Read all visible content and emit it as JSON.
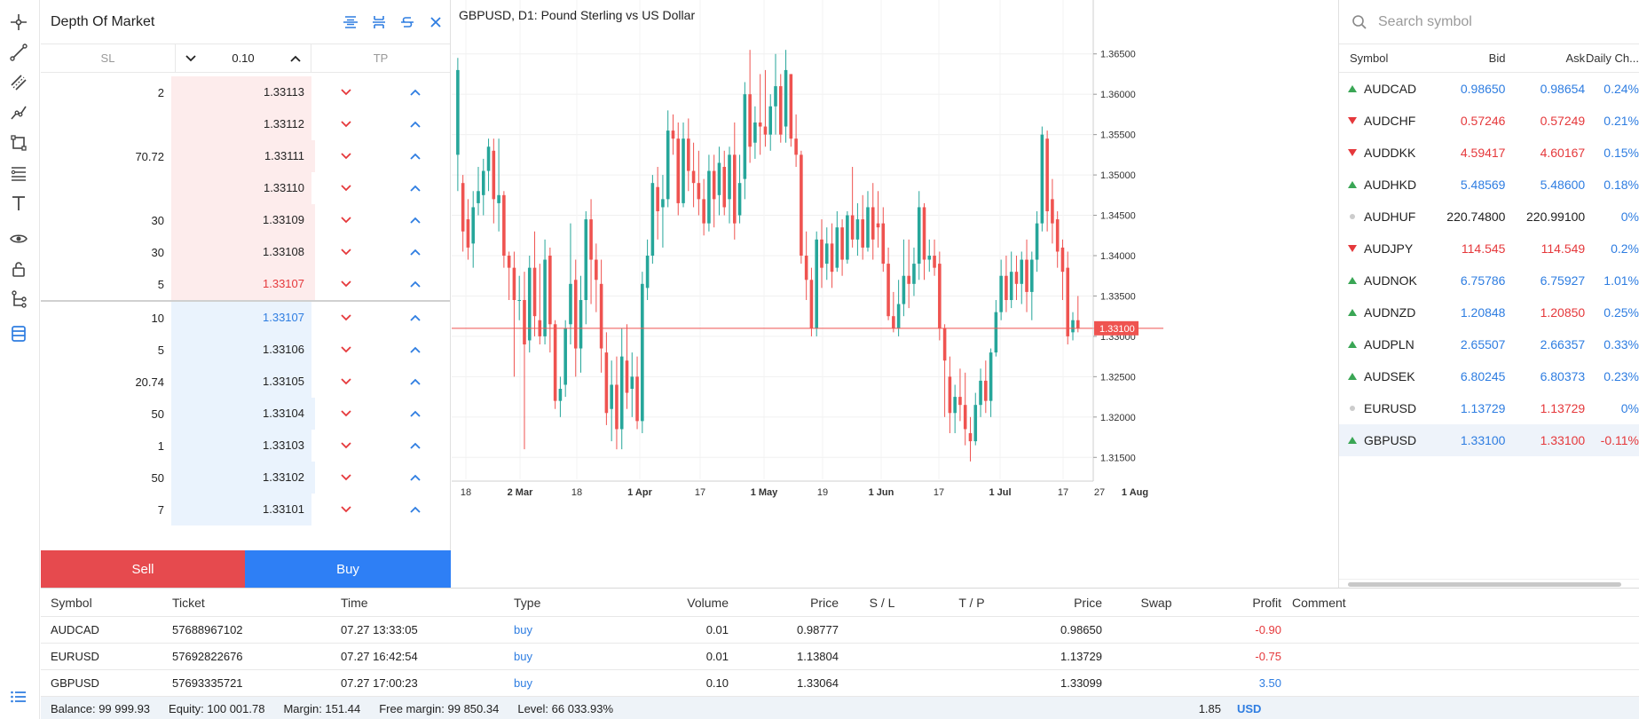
{
  "toolbar": {
    "tools": [
      "crosshair-icon",
      "trend-line-icon",
      "channel-icon",
      "polyline-icon",
      "shape-icon",
      "fibonacci-icon",
      "text-icon",
      "eye-icon",
      "lock-icon",
      "tree-icon",
      "depth-of-market-icon"
    ],
    "bottom": "list-icon"
  },
  "dom": {
    "title": "Depth Of Market",
    "sl_label": "SL",
    "tp_label": "TP",
    "volume": "0.10",
    "asks": [
      {
        "volume": "2",
        "price": "1.33113",
        "depth": 0
      },
      {
        "volume": "",
        "price": "1.33112",
        "depth": 0
      },
      {
        "volume": "70.72",
        "price": "1.33111",
        "depth": 0.6
      },
      {
        "volume": "",
        "price": "1.33110",
        "depth": 0
      },
      {
        "volume": "30",
        "price": "1.33109",
        "depth": 0.26
      },
      {
        "volume": "30",
        "price": "1.33108",
        "depth": 0.26
      },
      {
        "volume": "5",
        "price": "1.33107",
        "depth": 0.04,
        "highlight": true
      }
    ],
    "bids": [
      {
        "volume": "10",
        "price": "1.33107",
        "depth": 0,
        "highlight": true
      },
      {
        "volume": "5",
        "price": "1.33106",
        "depth": 0
      },
      {
        "volume": "20.74",
        "price": "1.33105",
        "depth": 0
      },
      {
        "volume": "50",
        "price": "1.33104",
        "depth": 0.38
      },
      {
        "volume": "1",
        "price": "1.33103",
        "depth": 0
      },
      {
        "volume": "50",
        "price": "1.33102",
        "depth": 0.38
      },
      {
        "volume": "7",
        "price": "1.33101",
        "depth": 0
      }
    ],
    "sell_label": "Sell",
    "buy_label": "Buy"
  },
  "chart": {
    "title": "GBPUSD, D1: Pound Sterling vs US Dollar",
    "current_price": "1.33100",
    "colors": {
      "up": "#26a69a",
      "down": "#ef5350",
      "price_line": "#ef5350"
    }
  },
  "chart_data": {
    "type": "candlestick",
    "title": "GBPUSD, D1: Pound Sterling vs US Dollar",
    "x_tick_labels": [
      "18",
      "2 Mar",
      "18",
      "1 Apr",
      "17",
      "1 May",
      "19",
      "1 Jun",
      "17",
      "1 Jul",
      "17",
      "27",
      "1 Aug"
    ],
    "y_tick_labels": [
      "1.36500",
      "1.36000",
      "1.35500",
      "1.35000",
      "1.34500",
      "1.34000",
      "1.33500",
      "1.33000",
      "1.32500",
      "1.32000",
      "1.31500"
    ],
    "ylim": [
      1.3125,
      1.3697
    ],
    "current_price": 1.331,
    "candles": [
      [
        1.3525,
        1.3645,
        1.363,
        1.348
      ],
      [
        1.349,
        1.35,
        1.343,
        1.3405
      ],
      [
        1.3445,
        1.347,
        1.341,
        1.3395
      ],
      [
        1.3415,
        1.348,
        1.346,
        1.3385
      ],
      [
        1.3465,
        1.351,
        1.348,
        1.345
      ],
      [
        1.3475,
        1.352,
        1.3505,
        1.345
      ],
      [
        1.3505,
        1.3545,
        1.3535,
        1.348
      ],
      [
        1.353,
        1.3545,
        1.347,
        1.344
      ],
      [
        1.3465,
        1.3545,
        1.3475,
        1.343
      ],
      [
        1.3475,
        1.348,
        1.34,
        1.3385
      ],
      [
        1.34,
        1.3405,
        1.3385,
        1.3345
      ],
      [
        1.3385,
        1.3405,
        1.3345,
        1.325
      ],
      [
        1.3345,
        1.3375,
        1.3345,
        1.332
      ],
      [
        1.3345,
        1.338,
        1.329,
        1.316
      ],
      [
        1.3295,
        1.34,
        1.3385,
        1.328
      ],
      [
        1.3385,
        1.343,
        1.3325,
        1.33
      ],
      [
        1.332,
        1.339,
        1.33,
        1.329
      ],
      [
        1.33,
        1.342,
        1.3395,
        1.329
      ],
      [
        1.34,
        1.341,
        1.3315,
        1.328
      ],
      [
        1.3315,
        1.332,
        1.322,
        1.321
      ],
      [
        1.322,
        1.325,
        1.3235,
        1.32
      ],
      [
        1.324,
        1.332,
        1.331,
        1.3225
      ],
      [
        1.3315,
        1.344,
        1.3365,
        1.329
      ],
      [
        1.337,
        1.3395,
        1.3285,
        1.325
      ],
      [
        1.3285,
        1.3375,
        1.3345,
        1.3255
      ],
      [
        1.3345,
        1.3455,
        1.3445,
        1.3315
      ],
      [
        1.3445,
        1.347,
        1.3395,
        1.334
      ],
      [
        1.3395,
        1.3415,
        1.337,
        1.333
      ],
      [
        1.3365,
        1.3395,
        1.3285,
        1.3255
      ],
      [
        1.328,
        1.3305,
        1.3205,
        1.319
      ],
      [
        1.321,
        1.327,
        1.324,
        1.317
      ],
      [
        1.324,
        1.3275,
        1.3185,
        1.316
      ],
      [
        1.3185,
        1.331,
        1.3275,
        1.316
      ],
      [
        1.327,
        1.3315,
        1.323,
        1.321
      ],
      [
        1.3235,
        1.328,
        1.325,
        1.32
      ],
      [
        1.325,
        1.3275,
        1.3195,
        1.3185
      ],
      [
        1.3195,
        1.338,
        1.3365,
        1.318
      ],
      [
        1.336,
        1.342,
        1.34,
        1.3345
      ],
      [
        1.34,
        1.35,
        1.349,
        1.339
      ],
      [
        1.3485,
        1.351,
        1.3455,
        1.342
      ],
      [
        1.346,
        1.35,
        1.347,
        1.341
      ],
      [
        1.347,
        1.358,
        1.3555,
        1.346
      ],
      [
        1.3555,
        1.3575,
        1.3545,
        1.3525
      ],
      [
        1.3545,
        1.3565,
        1.3465,
        1.345
      ],
      [
        1.3465,
        1.3565,
        1.3545,
        1.346
      ],
      [
        1.3545,
        1.357,
        1.3505,
        1.348
      ],
      [
        1.3505,
        1.354,
        1.349,
        1.346
      ],
      [
        1.349,
        1.353,
        1.347,
        1.345
      ],
      [
        1.347,
        1.3495,
        1.344,
        1.3425
      ],
      [
        1.344,
        1.3525,
        1.3505,
        1.343
      ],
      [
        1.3505,
        1.3525,
        1.347,
        1.3435
      ],
      [
        1.3475,
        1.3535,
        1.3515,
        1.345
      ],
      [
        1.351,
        1.353,
        1.346,
        1.345
      ],
      [
        1.347,
        1.3535,
        1.3525,
        1.344
      ],
      [
        1.3525,
        1.3565,
        1.344,
        1.342
      ],
      [
        1.345,
        1.3525,
        1.349,
        1.344
      ],
      [
        1.3495,
        1.3615,
        1.36,
        1.347
      ],
      [
        1.36,
        1.3655,
        1.3535,
        1.3515
      ],
      [
        1.354,
        1.3585,
        1.3565,
        1.352
      ],
      [
        1.3565,
        1.3625,
        1.356,
        1.3525
      ],
      [
        1.356,
        1.363,
        1.355,
        1.3535
      ],
      [
        1.355,
        1.36,
        1.3585,
        1.353
      ],
      [
        1.3585,
        1.365,
        1.361,
        1.355
      ],
      [
        1.361,
        1.3625,
        1.355,
        1.354
      ],
      [
        1.356,
        1.3655,
        1.363,
        1.354
      ],
      [
        1.3625,
        1.3625,
        1.3545,
        1.3535
      ],
      [
        1.3545,
        1.3575,
        1.3525,
        1.351
      ],
      [
        1.3525,
        1.353,
        1.34,
        1.339
      ],
      [
        1.34,
        1.343,
        1.337,
        1.3345
      ],
      [
        1.337,
        1.3385,
        1.331,
        1.33
      ],
      [
        1.331,
        1.343,
        1.342,
        1.33
      ],
      [
        1.342,
        1.3445,
        1.3385,
        1.336
      ],
      [
        1.339,
        1.3435,
        1.3415,
        1.337
      ],
      [
        1.3415,
        1.344,
        1.338,
        1.336
      ],
      [
        1.3385,
        1.3455,
        1.3435,
        1.338
      ],
      [
        1.3435,
        1.3445,
        1.3395,
        1.3375
      ],
      [
        1.3395,
        1.3455,
        1.345,
        1.339
      ],
      [
        1.345,
        1.351,
        1.342,
        1.341
      ],
      [
        1.342,
        1.3465,
        1.3445,
        1.34
      ],
      [
        1.3445,
        1.3475,
        1.341,
        1.3395
      ],
      [
        1.341,
        1.348,
        1.346,
        1.3405
      ],
      [
        1.346,
        1.349,
        1.342,
        1.3395
      ],
      [
        1.344,
        1.348,
        1.3435,
        1.341
      ],
      [
        1.344,
        1.346,
        1.339,
        1.338
      ],
      [
        1.339,
        1.341,
        1.3325,
        1.332
      ],
      [
        1.3325,
        1.3355,
        1.331,
        1.3305
      ],
      [
        1.331,
        1.337,
        1.334,
        1.33
      ],
      [
        1.334,
        1.342,
        1.3375,
        1.3325
      ],
      [
        1.3375,
        1.342,
        1.3365,
        1.3335
      ],
      [
        1.3365,
        1.341,
        1.339,
        1.335
      ],
      [
        1.339,
        1.348,
        1.346,
        1.337
      ],
      [
        1.346,
        1.3465,
        1.3395,
        1.337
      ],
      [
        1.3395,
        1.342,
        1.34,
        1.338
      ],
      [
        1.34,
        1.342,
        1.3385,
        1.3375
      ],
      [
        1.339,
        1.3405,
        1.331,
        1.3295
      ],
      [
        1.331,
        1.3315,
        1.327,
        1.32
      ],
      [
        1.325,
        1.3275,
        1.3205,
        1.318
      ],
      [
        1.3205,
        1.324,
        1.3225,
        1.318
      ],
      [
        1.3225,
        1.326,
        1.3215,
        1.3195
      ],
      [
        1.3215,
        1.3255,
        1.3185,
        1.3165
      ],
      [
        1.318,
        1.32,
        1.317,
        1.3145
      ],
      [
        1.317,
        1.323,
        1.3215,
        1.3165
      ],
      [
        1.3215,
        1.326,
        1.3245,
        1.32
      ],
      [
        1.3245,
        1.327,
        1.322,
        1.3205
      ],
      [
        1.322,
        1.3285,
        1.328,
        1.32
      ],
      [
        1.328,
        1.3345,
        1.333,
        1.3275
      ],
      [
        1.333,
        1.3395,
        1.3375,
        1.332
      ],
      [
        1.3375,
        1.34,
        1.3345,
        1.333
      ],
      [
        1.3345,
        1.3405,
        1.338,
        1.3335
      ],
      [
        1.338,
        1.34,
        1.3365,
        1.3345
      ],
      [
        1.3365,
        1.3405,
        1.3395,
        1.334
      ],
      [
        1.3395,
        1.342,
        1.3355,
        1.333
      ],
      [
        1.3355,
        1.3405,
        1.3395,
        1.332
      ],
      [
        1.3395,
        1.3455,
        1.344,
        1.338
      ],
      [
        1.344,
        1.356,
        1.355,
        1.343
      ],
      [
        1.3545,
        1.3555,
        1.3455,
        1.343
      ],
      [
        1.347,
        1.3495,
        1.344,
        1.3415
      ],
      [
        1.3445,
        1.3455,
        1.3405,
        1.3385
      ],
      [
        1.341,
        1.342,
        1.338,
        1.3345
      ],
      [
        1.3385,
        1.3405,
        1.33,
        1.329
      ],
      [
        1.3305,
        1.333,
        1.332,
        1.3295
      ],
      [
        1.332,
        1.335,
        1.331,
        1.3305
      ]
    ]
  },
  "market_watch": {
    "search_placeholder": "Search symbol",
    "headers": {
      "symbol": "Symbol",
      "bid": "Bid",
      "ask": "Ask",
      "change": "Daily Ch..."
    },
    "rows": [
      {
        "symbol": "AUDCAD",
        "bid": "0.98650",
        "ask": "0.98654",
        "change": "0.24%",
        "dir": "up",
        "color": "#2e7de1"
      },
      {
        "symbol": "AUDCHF",
        "bid": "0.57246",
        "ask": "0.57249",
        "change": "0.21%",
        "dir": "down",
        "color": "#e5383b"
      },
      {
        "symbol": "AUDDKK",
        "bid": "4.59417",
        "ask": "4.60167",
        "change": "0.15%",
        "dir": "down",
        "color": "#e5383b"
      },
      {
        "symbol": "AUDHKD",
        "bid": "5.48569",
        "ask": "5.48600",
        "change": "0.18%",
        "dir": "up",
        "color": "#2e7de1"
      },
      {
        "symbol": "AUDHUF",
        "bid": "220.74800",
        "ask": "220.99100",
        "change": "0%",
        "dir": "none",
        "color": "#222222"
      },
      {
        "symbol": "AUDJPY",
        "bid": "114.545",
        "ask": "114.549",
        "change": "0.2%",
        "dir": "down",
        "color": "#e5383b"
      },
      {
        "symbol": "AUDNOK",
        "bid": "6.75786",
        "ask": "6.75927",
        "change": "1.01%",
        "dir": "up",
        "color": "#2e7de1"
      },
      {
        "symbol": "AUDNZD",
        "bid": "1.20848",
        "ask": "1.20850",
        "change": "0.25%",
        "dir": "up",
        "color": "mixed"
      },
      {
        "symbol": "AUDPLN",
        "bid": "2.65507",
        "ask": "2.66357",
        "change": "0.33%",
        "dir": "up",
        "color": "#2e7de1"
      },
      {
        "symbol": "AUDSEK",
        "bid": "6.80245",
        "ask": "6.80373",
        "change": "0.23%",
        "dir": "up",
        "color": "#2e7de1"
      },
      {
        "symbol": "EURUSD",
        "bid": "1.13729",
        "ask": "1.13729",
        "change": "0%",
        "dir": "none",
        "color": "mixed"
      },
      {
        "symbol": "GBPUSD",
        "bid": "1.33100",
        "ask": "1.33100",
        "change": "-0.11%",
        "dir": "up",
        "color": "mixed",
        "selected": true
      }
    ]
  },
  "trade": {
    "headers": {
      "symbol": "Symbol",
      "ticket": "Ticket",
      "time": "Time",
      "type": "Type",
      "volume": "Volume",
      "price": "Price",
      "sl": "S / L",
      "tp": "T / P",
      "current_price": "Price",
      "swap": "Swap",
      "profit": "Profit",
      "comment": "Comment"
    },
    "rows": [
      {
        "symbol": "AUDCAD",
        "ticket": "57688967102",
        "time": "07.27 13:33:05",
        "type": "buy",
        "volume": "0.01",
        "price": "0.98777",
        "sl": "",
        "tp": "",
        "current_price": "0.98650",
        "swap": "",
        "profit": "-0.90",
        "profit_color": "#e5383b"
      },
      {
        "symbol": "EURUSD",
        "ticket": "57692822676",
        "time": "07.27 16:42:54",
        "type": "buy",
        "volume": "0.01",
        "price": "1.13804",
        "sl": "",
        "tp": "",
        "current_price": "1.13729",
        "swap": "",
        "profit": "-0.75",
        "profit_color": "#e5383b"
      },
      {
        "symbol": "GBPUSD",
        "ticket": "57693335721",
        "time": "07.27 17:00:23",
        "type": "buy",
        "volume": "0.10",
        "price": "1.33064",
        "sl": "",
        "tp": "",
        "current_price": "1.33099",
        "swap": "",
        "profit": "3.50",
        "profit_color": "#2e7de1"
      }
    ],
    "summary": {
      "balance": "Balance: 99 999.93",
      "equity": "Equity: 100 001.78",
      "margin": "Margin: 151.44",
      "free_margin": "Free margin: 99 850.34",
      "level": "Level: 66 033.93%",
      "total_profit": "1.85",
      "currency": "USD"
    }
  }
}
